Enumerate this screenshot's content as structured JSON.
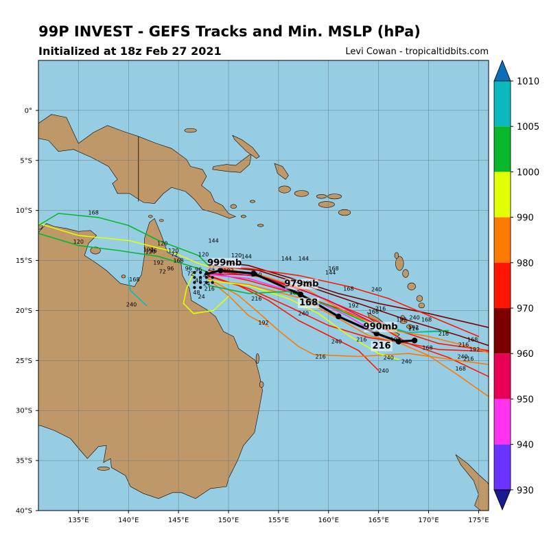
{
  "header": {
    "title": "99P INVEST - GEFS Tracks and Min. MSLP (hPa)",
    "subtitle": "Initialized at 18z Feb 27 2021",
    "credit": "Levi Cowan - tropicaltidbits.com"
  },
  "map": {
    "lon_range": [
      131,
      176
    ],
    "lat_range": [
      -40,
      5
    ],
    "lon_ticks": [
      "135°E",
      "140°E",
      "145°E",
      "150°E",
      "155°E",
      "160°E",
      "165°E",
      "170°E",
      "175°E"
    ],
    "lat_ticks": [
      "0°",
      "5°S",
      "10°S",
      "15°S",
      "20°S",
      "25°S",
      "30°S",
      "35°S",
      "40°S"
    ],
    "ocean_color": "#96cde3",
    "land_color": "#bf9869"
  },
  "colorbar": {
    "levels": [
      "1010",
      "1005",
      "1000",
      "990",
      "980",
      "970",
      "960",
      "950",
      "940",
      "930"
    ],
    "colors": [
      "#0b6eb7",
      "#0bb8bd",
      "#08b72b",
      "#e0ff05",
      "#ff7a00",
      "#ff1500",
      "#7d0000",
      "#e80056",
      "#ff33ee",
      "#6a33ff",
      "#1a1a8f"
    ]
  },
  "ensemble_mean": {
    "hour_labels": [
      "168",
      "216"
    ],
    "pressure_labels": [
      "999mb",
      "979mb",
      "990mb"
    ]
  },
  "hour_labels": [
    "144",
    "120",
    "168",
    "192",
    "216",
    "240",
    "96",
    "72",
    "48",
    "24"
  ],
  "tracks": [
    {
      "color": "#7d0000",
      "points": [
        [
          148.0,
          -15.0
        ],
        [
          152,
          -15.5
        ],
        [
          157,
          -17.0
        ],
        [
          161,
          -18.3
        ],
        [
          165,
          -19.3
        ],
        [
          170,
          -20.3
        ],
        [
          176,
          -21.7
        ]
      ]
    },
    {
      "color": "#7d0000",
      "points": [
        [
          148.0,
          -15.5
        ],
        [
          153,
          -16.0
        ],
        [
          158,
          -17.6
        ],
        [
          163,
          -19.3
        ],
        [
          168,
          -21.0
        ],
        [
          173,
          -22.5
        ],
        [
          176,
          -23.5
        ]
      ]
    },
    {
      "color": "#ff1500",
      "points": [
        [
          148.0,
          -15.7
        ],
        [
          152,
          -15.8
        ],
        [
          157,
          -16.5
        ],
        [
          162,
          -17.6
        ],
        [
          166,
          -18.8
        ],
        [
          170,
          -20.5
        ],
        [
          175,
          -22.6
        ]
      ]
    },
    {
      "color": "#ff1500",
      "points": [
        [
          148.0,
          -16.0
        ],
        [
          153,
          -16.6
        ],
        [
          158,
          -18.2
        ],
        [
          163,
          -20.3
        ],
        [
          167,
          -22.0
        ],
        [
          171,
          -23.3
        ],
        [
          176,
          -24.0
        ]
      ]
    },
    {
      "color": "#ff1500",
      "points": [
        [
          148.0,
          -16.2
        ],
        [
          152,
          -17.0
        ],
        [
          157,
          -18.4
        ],
        [
          161,
          -19.8
        ],
        [
          165,
          -21.5
        ],
        [
          168,
          -23.3
        ],
        [
          172,
          -24.7
        ],
        [
          176,
          -26.6
        ]
      ]
    },
    {
      "color": "#ff1500",
      "points": [
        [
          148.0,
          -16.5
        ],
        [
          151,
          -17.5
        ],
        [
          154,
          -19.0
        ],
        [
          157,
          -21.0
        ],
        [
          160,
          -22.5
        ],
        [
          163,
          -24.0
        ],
        [
          165,
          -26.0
        ]
      ]
    },
    {
      "color": "#ff1500",
      "points": [
        [
          148.0,
          -16.6
        ],
        [
          152,
          -17.8
        ],
        [
          156,
          -19.6
        ],
        [
          160,
          -21.5
        ],
        [
          164,
          -22.7
        ],
        [
          168,
          -23.3
        ],
        [
          171,
          -23.9
        ],
        [
          176,
          -24.1
        ]
      ]
    },
    {
      "color": "#ff7a00",
      "points": [
        [
          148.0,
          -16.8
        ],
        [
          151,
          -18.5
        ],
        [
          153,
          -20.2
        ],
        [
          155,
          -22.0
        ],
        [
          157,
          -23.6
        ],
        [
          158.5,
          -24.4
        ],
        [
          163,
          -24.6
        ],
        [
          168,
          -24.3
        ],
        [
          173,
          -25.0
        ],
        [
          176,
          -25.4
        ]
      ]
    },
    {
      "color": "#ff7a00",
      "points": [
        [
          148.0,
          -16.9
        ],
        [
          150,
          -18.5
        ],
        [
          152,
          -20.5
        ],
        [
          154,
          -21.6
        ]
      ]
    },
    {
      "color": "#ff7a00",
      "points": [
        [
          148.0,
          -17.0
        ],
        [
          152,
          -17.4
        ],
        [
          157,
          -18.7
        ],
        [
          161,
          -20.8
        ],
        [
          164,
          -22.5
        ],
        [
          167,
          -23.2
        ],
        [
          170,
          -24.5
        ],
        [
          173,
          -26.5
        ],
        [
          176,
          -28.6
        ]
      ]
    },
    {
      "color": "#ff7a00",
      "points": [
        [
          148.0,
          -15.6
        ],
        [
          153,
          -16.4
        ],
        [
          158,
          -18.0
        ],
        [
          162,
          -20.3
        ],
        [
          166,
          -21.9
        ],
        [
          170,
          -22.6
        ],
        [
          174,
          -23.6
        ],
        [
          176,
          -24.2
        ]
      ]
    },
    {
      "color": "#ff33ee",
      "points": [
        [
          148.0,
          -16.4
        ],
        [
          152,
          -16.8
        ],
        [
          156,
          -18.0
        ],
        [
          159.5,
          -19.4
        ],
        [
          162,
          -20.6
        ],
        [
          165,
          -22.4
        ],
        [
          167,
          -23.2
        ]
      ]
    },
    {
      "color": "#e80056",
      "points": [
        [
          148.0,
          -16.3
        ],
        [
          153,
          -16.5
        ],
        [
          157,
          -17.8
        ],
        [
          160,
          -19.0
        ],
        [
          163,
          -20.5
        ],
        [
          166,
          -22.0
        ]
      ]
    },
    {
      "color": "#e0ff05",
      "points": [
        [
          148.0,
          -17.0
        ],
        [
          152,
          -17.5
        ],
        [
          156,
          -18.8
        ],
        [
          159,
          -20.3
        ],
        [
          162,
          -22.5
        ],
        [
          165,
          -24.3
        ],
        [
          167,
          -24.9
        ]
      ]
    },
    {
      "color": "#e0ff05",
      "points": [
        [
          131,
          -11.3
        ],
        [
          135,
          -12.5
        ],
        [
          140,
          -13.0
        ],
        [
          144,
          -14.0
        ],
        [
          147,
          -15.3
        ],
        [
          148.0,
          -15.6
        ]
      ]
    },
    {
      "color": "#e0ff05",
      "points": [
        [
          146.5,
          -16.2
        ],
        [
          145.8,
          -17.8
        ],
        [
          145.5,
          -19.3
        ],
        [
          146.5,
          -20.3
        ],
        [
          148.5,
          -20.0
        ],
        [
          150,
          -18.6
        ]
      ]
    },
    {
      "color": "#08b72b",
      "points": [
        [
          131,
          -11.5
        ],
        [
          133,
          -10.3
        ],
        [
          137,
          -10.7
        ],
        [
          140,
          -11.5
        ],
        [
          143,
          -13.0
        ],
        [
          147,
          -14.5
        ],
        [
          148.0,
          -15.5
        ]
      ]
    },
    {
      "color": "#08b72b",
      "points": [
        [
          131,
          -12.3
        ],
        [
          135,
          -13.5
        ],
        [
          139,
          -14.0
        ],
        [
          143,
          -14.6
        ],
        [
          147,
          -15.8
        ],
        [
          148.0,
          -16.2
        ]
      ]
    },
    {
      "color": "#08b72b",
      "points": [
        [
          148.0,
          -17.5
        ],
        [
          152,
          -18.3
        ],
        [
          156,
          -18.1
        ],
        [
          160,
          -19.5
        ],
        [
          164,
          -21.3
        ],
        [
          168,
          -22.2
        ],
        [
          172,
          -22.0
        ]
      ]
    },
    {
      "color": "#0bb8bd",
      "points": [
        [
          140,
          -16.7
        ],
        [
          140.2,
          -18.0
        ],
        [
          141.8,
          -19.5
        ]
      ]
    },
    {
      "color": "#0bb8bd",
      "points": [
        [
          164.5,
          -21.2
        ],
        [
          168,
          -22.2
        ],
        [
          171,
          -22.1
        ]
      ]
    }
  ],
  "land": [
    {
      "name": "australia",
      "points": [
        [
          131,
          -12.2
        ],
        [
          131.8,
          -11.3
        ],
        [
          132.6,
          -11.6
        ],
        [
          133.8,
          -11.8
        ],
        [
          135,
          -12.1
        ],
        [
          136.2,
          -12.0
        ],
        [
          136.8,
          -12.5
        ],
        [
          136.0,
          -13.3
        ],
        [
          135.6,
          -14.5
        ],
        [
          136.7,
          -15.2
        ],
        [
          137.8,
          -16.0
        ],
        [
          139.2,
          -17.3
        ],
        [
          140.6,
          -17.6
        ],
        [
          141.3,
          -16.4
        ],
        [
          141.6,
          -14.5
        ],
        [
          141.6,
          -12.8
        ],
        [
          142.1,
          -11.2
        ],
        [
          142.6,
          -10.8
        ],
        [
          143.3,
          -12.5
        ],
        [
          143.9,
          -14.2
        ],
        [
          145.2,
          -14.8
        ],
        [
          145.4,
          -16.5
        ],
        [
          146.1,
          -17.8
        ],
        [
          146.3,
          -19.0
        ],
        [
          147.8,
          -19.9
        ],
        [
          148.7,
          -20.6
        ],
        [
          149.5,
          -22.1
        ],
        [
          150.5,
          -22.6
        ],
        [
          151.0,
          -23.8
        ],
        [
          152.7,
          -25.0
        ],
        [
          153.1,
          -26.5
        ],
        [
          153.4,
          -28.0
        ],
        [
          153.0,
          -30.2
        ],
        [
          152.6,
          -32.2
        ],
        [
          151.5,
          -33.5
        ],
        [
          150.9,
          -35.0
        ],
        [
          150.0,
          -36.8
        ],
        [
          149.8,
          -37.6
        ],
        [
          148.2,
          -37.8
        ],
        [
          146.7,
          -38.8
        ],
        [
          145.3,
          -38.2
        ],
        [
          144.4,
          -38.2
        ],
        [
          143.0,
          -38.8
        ],
        [
          141.5,
          -38.3
        ],
        [
          140.2,
          -37.6
        ],
        [
          139.7,
          -36.5
        ],
        [
          138.3,
          -35.7
        ],
        [
          138.2,
          -34.8
        ],
        [
          137.5,
          -35.2
        ],
        [
          137.8,
          -33.5
        ],
        [
          137.0,
          -33.6
        ],
        [
          135.9,
          -34.8
        ],
        [
          135.2,
          -34.0
        ],
        [
          134.2,
          -32.8
        ],
        [
          132.6,
          -32.0
        ],
        [
          131.2,
          -31.5
        ],
        [
          131,
          -31.5
        ]
      ]
    },
    {
      "name": "tasmania",
      "points": [
        [
          144.6,
          -40.0
        ],
        [
          145.2,
          -40.8
        ],
        [
          146.5,
          -41.1
        ],
        [
          148.3,
          -40.9
        ],
        [
          148.3,
          -40.0
        ]
      ]
    },
    {
      "name": "new-guinea",
      "points": [
        [
          131,
          -1.3
        ],
        [
          132.3,
          -0.4
        ],
        [
          133.8,
          -0.7
        ],
        [
          135.0,
          -3.3
        ],
        [
          136.5,
          -2.2
        ],
        [
          137.9,
          -1.5
        ],
        [
          139.5,
          -2.1
        ],
        [
          141.0,
          -2.6
        ],
        [
          142.8,
          -3.3
        ],
        [
          144.3,
          -3.8
        ],
        [
          145.8,
          -4.9
        ],
        [
          146.2,
          -5.6
        ],
        [
          147.4,
          -5.9
        ],
        [
          147.8,
          -6.6
        ],
        [
          147.3,
          -7.5
        ],
        [
          148.2,
          -8.2
        ],
        [
          148.6,
          -9.1
        ],
        [
          149.4,
          -9.5
        ],
        [
          150.0,
          -10.3
        ],
        [
          150.7,
          -10.6
        ],
        [
          150.1,
          -10.8
        ],
        [
          148.8,
          -10.3
        ],
        [
          147.4,
          -9.9
        ],
        [
          146.6,
          -8.9
        ],
        [
          145.7,
          -8.1
        ],
        [
          144.3,
          -7.7
        ],
        [
          143.5,
          -8.3
        ],
        [
          142.6,
          -9.3
        ],
        [
          141.5,
          -9.2
        ],
        [
          140.1,
          -8.3
        ],
        [
          138.9,
          -8.3
        ],
        [
          138.4,
          -7.3
        ],
        [
          138.9,
          -6.9
        ],
        [
          138.0,
          -5.6
        ],
        [
          136.3,
          -4.7
        ],
        [
          134.5,
          -3.9
        ],
        [
          133.0,
          -4.1
        ],
        [
          132.0,
          -3.0
        ],
        [
          131,
          -2.8
        ]
      ]
    },
    {
      "name": "new-britain",
      "points": [
        [
          148.5,
          -5.6
        ],
        [
          149.8,
          -5.4
        ],
        [
          150.7,
          -5.5
        ],
        [
          151.5,
          -4.9
        ],
        [
          152.3,
          -4.3
        ],
        [
          152.1,
          -5.4
        ],
        [
          151.2,
          -6.2
        ],
        [
          149.9,
          -6.1
        ],
        [
          148.4,
          -5.9
        ]
      ]
    },
    {
      "name": "new-ireland",
      "points": [
        [
          150.4,
          -2.5
        ],
        [
          151.3,
          -2.9
        ],
        [
          152.4,
          -3.7
        ],
        [
          153.1,
          -4.6
        ],
        [
          152.8,
          -4.8
        ],
        [
          151.8,
          -4.1
        ],
        [
          150.6,
          -2.9
        ]
      ]
    },
    {
      "name": "bougainville",
      "points": [
        [
          154.6,
          -5.3
        ],
        [
          155.4,
          -5.6
        ],
        [
          156.0,
          -6.5
        ],
        [
          155.7,
          -6.9
        ],
        [
          154.9,
          -6.3
        ]
      ]
    },
    {
      "name": "new-caledonia",
      "points": [
        [
          163.9,
          -20.2
        ],
        [
          165.0,
          -20.8
        ],
        [
          166.3,
          -21.9
        ],
        [
          167.1,
          -22.4
        ],
        [
          166.9,
          -22.6
        ],
        [
          165.5,
          -21.8
        ],
        [
          164.1,
          -20.8
        ]
      ]
    },
    {
      "name": "north-island-nz",
      "points": [
        [
          172.7,
          -34.4
        ],
        [
          173.9,
          -35.3
        ],
        [
          175.0,
          -36.4
        ],
        [
          175.9,
          -37.2
        ],
        [
          176,
          -37.4
        ],
        [
          176,
          -40.0
        ],
        [
          175.2,
          -40.0
        ],
        [
          174.6,
          -39.5
        ],
        [
          175.0,
          -38.4
        ],
        [
          174.5,
          -37.0
        ],
        [
          173.2,
          -35.4
        ]
      ]
    }
  ],
  "small_islands": [
    [
      155.6,
      -7.9,
      0.6,
      0.35
    ],
    [
      157.3,
      -8.3,
      0.7,
      0.3
    ],
    [
      159.8,
      -9.4,
      0.8,
      0.3
    ],
    [
      160.6,
      -8.6,
      0.7,
      0.25
    ],
    [
      161.6,
      -10.2,
      0.6,
      0.3
    ],
    [
      159.3,
      -8.6,
      0.5,
      0.2
    ],
    [
      167.1,
      -15.3,
      0.4,
      0.7
    ],
    [
      167.7,
      -16.3,
      0.3,
      0.4
    ],
    [
      168.3,
      -17.6,
      0.4,
      0.35
    ],
    [
      169.1,
      -18.8,
      0.3,
      0.3
    ],
    [
      169.3,
      -19.5,
      0.3,
      0.25
    ],
    [
      166.8,
      -14.5,
      0.2,
      0.3
    ],
    [
      167.5,
      -21.1,
      0.35,
      0.2
    ],
    [
      168.1,
      -21.6,
      0.3,
      0.2
    ],
    [
      167.4,
      -20.7,
      0.2,
      0.2
    ],
    [
      152.4,
      -9.1,
      0.25,
      0.12
    ],
    [
      151.5,
      -10.6,
      0.25,
      0.12
    ],
    [
      150.5,
      -9.6,
      0.3,
      0.2
    ],
    [
      153.2,
      -11.5,
      0.3,
      0.12
    ],
    [
      146.2,
      -2.0,
      0.6,
      0.2
    ],
    [
      143.3,
      -11.0,
      0.2,
      0.12
    ],
    [
      142.2,
      -10.6,
      0.2,
      0.12
    ],
    [
      136.7,
      -14.0,
      0.5,
      0.35
    ],
    [
      139.5,
      -16.6,
      0.2,
      0.15
    ],
    [
      153.3,
      -27.4,
      0.2,
      0.3
    ],
    [
      152.9,
      -24.8,
      0.15,
      0.5
    ],
    [
      137.5,
      -35.8,
      0.6,
      0.18
    ],
    [
      131.0,
      -11.6,
      0.4,
      0.3
    ]
  ]
}
